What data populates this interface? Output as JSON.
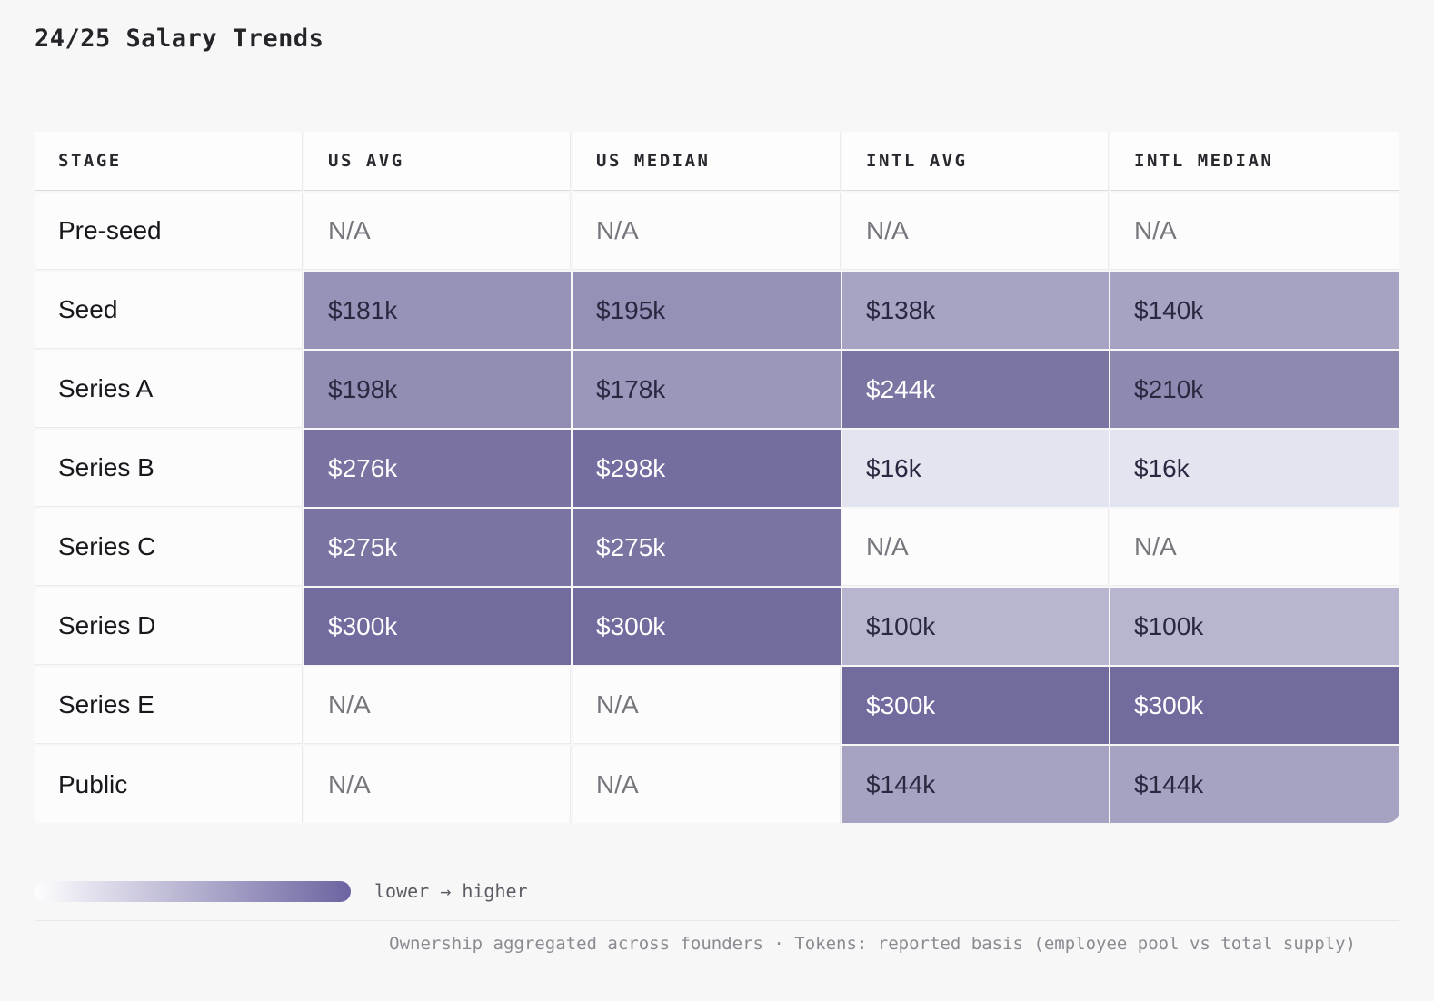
{
  "title": "24/25 Salary Trends",
  "table": {
    "columns": [
      "STAGE",
      "US AVG",
      "US MEDIAN",
      "INTL AVG",
      "INTL MEDIAN"
    ],
    "na_text": "N/A",
    "rows": [
      {
        "stage": "Pre-seed",
        "cells": [
          {
            "text": "N/A"
          },
          {
            "text": "N/A"
          },
          {
            "text": "N/A"
          },
          {
            "text": "N/A"
          }
        ]
      },
      {
        "stage": "Seed",
        "cells": [
          {
            "text": "$181k",
            "bg": "#9793b8",
            "fg": "#2a2740"
          },
          {
            "text": "$195k",
            "bg": "#9490b6",
            "fg": "#2a2740"
          },
          {
            "text": "$138k",
            "bg": "#a6a3c3",
            "fg": "#2a2740"
          },
          {
            "text": "$140k",
            "bg": "#a5a2c2",
            "fg": "#2a2740"
          }
        ]
      },
      {
        "stage": "Series A",
        "cells": [
          {
            "text": "$198k",
            "bg": "#918db3",
            "fg": "#2a2740"
          },
          {
            "text": "$178k",
            "bg": "#9b97bb",
            "fg": "#2a2740"
          },
          {
            "text": "$244k",
            "bg": "#7b75a3",
            "fg": "#ffffff"
          },
          {
            "text": "$210k",
            "bg": "#8d89b1",
            "fg": "#2a2740"
          }
        ]
      },
      {
        "stage": "Series B",
        "cells": [
          {
            "text": "$276k",
            "bg": "#7a73a2",
            "fg": "#ffffff"
          },
          {
            "text": "$298k",
            "bg": "#746da0",
            "fg": "#ffffff"
          },
          {
            "text": "$16k",
            "bg": "#e2e4ef",
            "fg": "#2a2740"
          },
          {
            "text": "$16k",
            "bg": "#e2e4ef",
            "fg": "#2a2740"
          }
        ]
      },
      {
        "stage": "Series C",
        "cells": [
          {
            "text": "$275k",
            "bg": "#7a74a2",
            "fg": "#ffffff"
          },
          {
            "text": "$275k",
            "bg": "#7a74a2",
            "fg": "#ffffff"
          },
          {
            "text": "N/A"
          },
          {
            "text": "N/A"
          }
        ]
      },
      {
        "stage": "Series D",
        "cells": [
          {
            "text": "$300k",
            "bg": "#726b9e",
            "fg": "#ffffff"
          },
          {
            "text": "$300k",
            "bg": "#726b9e",
            "fg": "#ffffff"
          },
          {
            "text": "$100k",
            "bg": "#b7b5cf",
            "fg": "#2a2740"
          },
          {
            "text": "$100k",
            "bg": "#b7b5cf",
            "fg": "#2a2740"
          }
        ]
      },
      {
        "stage": "Series E",
        "cells": [
          {
            "text": "N/A"
          },
          {
            "text": "N/A"
          },
          {
            "text": "$300k",
            "bg": "#726b9e",
            "fg": "#ffffff"
          },
          {
            "text": "$300k",
            "bg": "#726b9e",
            "fg": "#ffffff"
          }
        ]
      },
      {
        "stage": "Public",
        "cells": [
          {
            "text": "N/A"
          },
          {
            "text": "N/A"
          },
          {
            "text": "$144k",
            "bg": "#a5a3c1",
            "fg": "#2a2740"
          },
          {
            "text": "$144k",
            "bg": "#a5a3c1",
            "fg": "#2a2740"
          }
        ]
      }
    ]
  },
  "legend": {
    "label": "lower → higher",
    "gradient_from": "#fdfdfe",
    "gradient_to": "#6b64a1"
  },
  "footnote": "Ownership aggregated across founders · Tokens: reported basis (employee pool vs total supply)",
  "chart_data": {
    "type": "heatmap",
    "title": "24/25 Salary Trends",
    "rows": [
      "Pre-seed",
      "Seed",
      "Series A",
      "Series B",
      "Series C",
      "Series D",
      "Series E",
      "Public"
    ],
    "columns": [
      "US AVG",
      "US MEDIAN",
      "INTL AVG",
      "INTL MEDIAN"
    ],
    "values_k_usd": [
      [
        null,
        null,
        null,
        null
      ],
      [
        181,
        195,
        138,
        140
      ],
      [
        198,
        178,
        244,
        210
      ],
      [
        276,
        298,
        16,
        16
      ],
      [
        275,
        275,
        null,
        null
      ],
      [
        300,
        300,
        100,
        100
      ],
      [
        null,
        null,
        300,
        300
      ],
      [
        null,
        null,
        144,
        144
      ]
    ],
    "legend_label": "lower → higher",
    "color_scale": {
      "low": "#fdfdfe",
      "high": "#6b64a1"
    },
    "footnote": "Ownership aggregated across founders · Tokens: reported basis (employee pool vs total supply)"
  }
}
